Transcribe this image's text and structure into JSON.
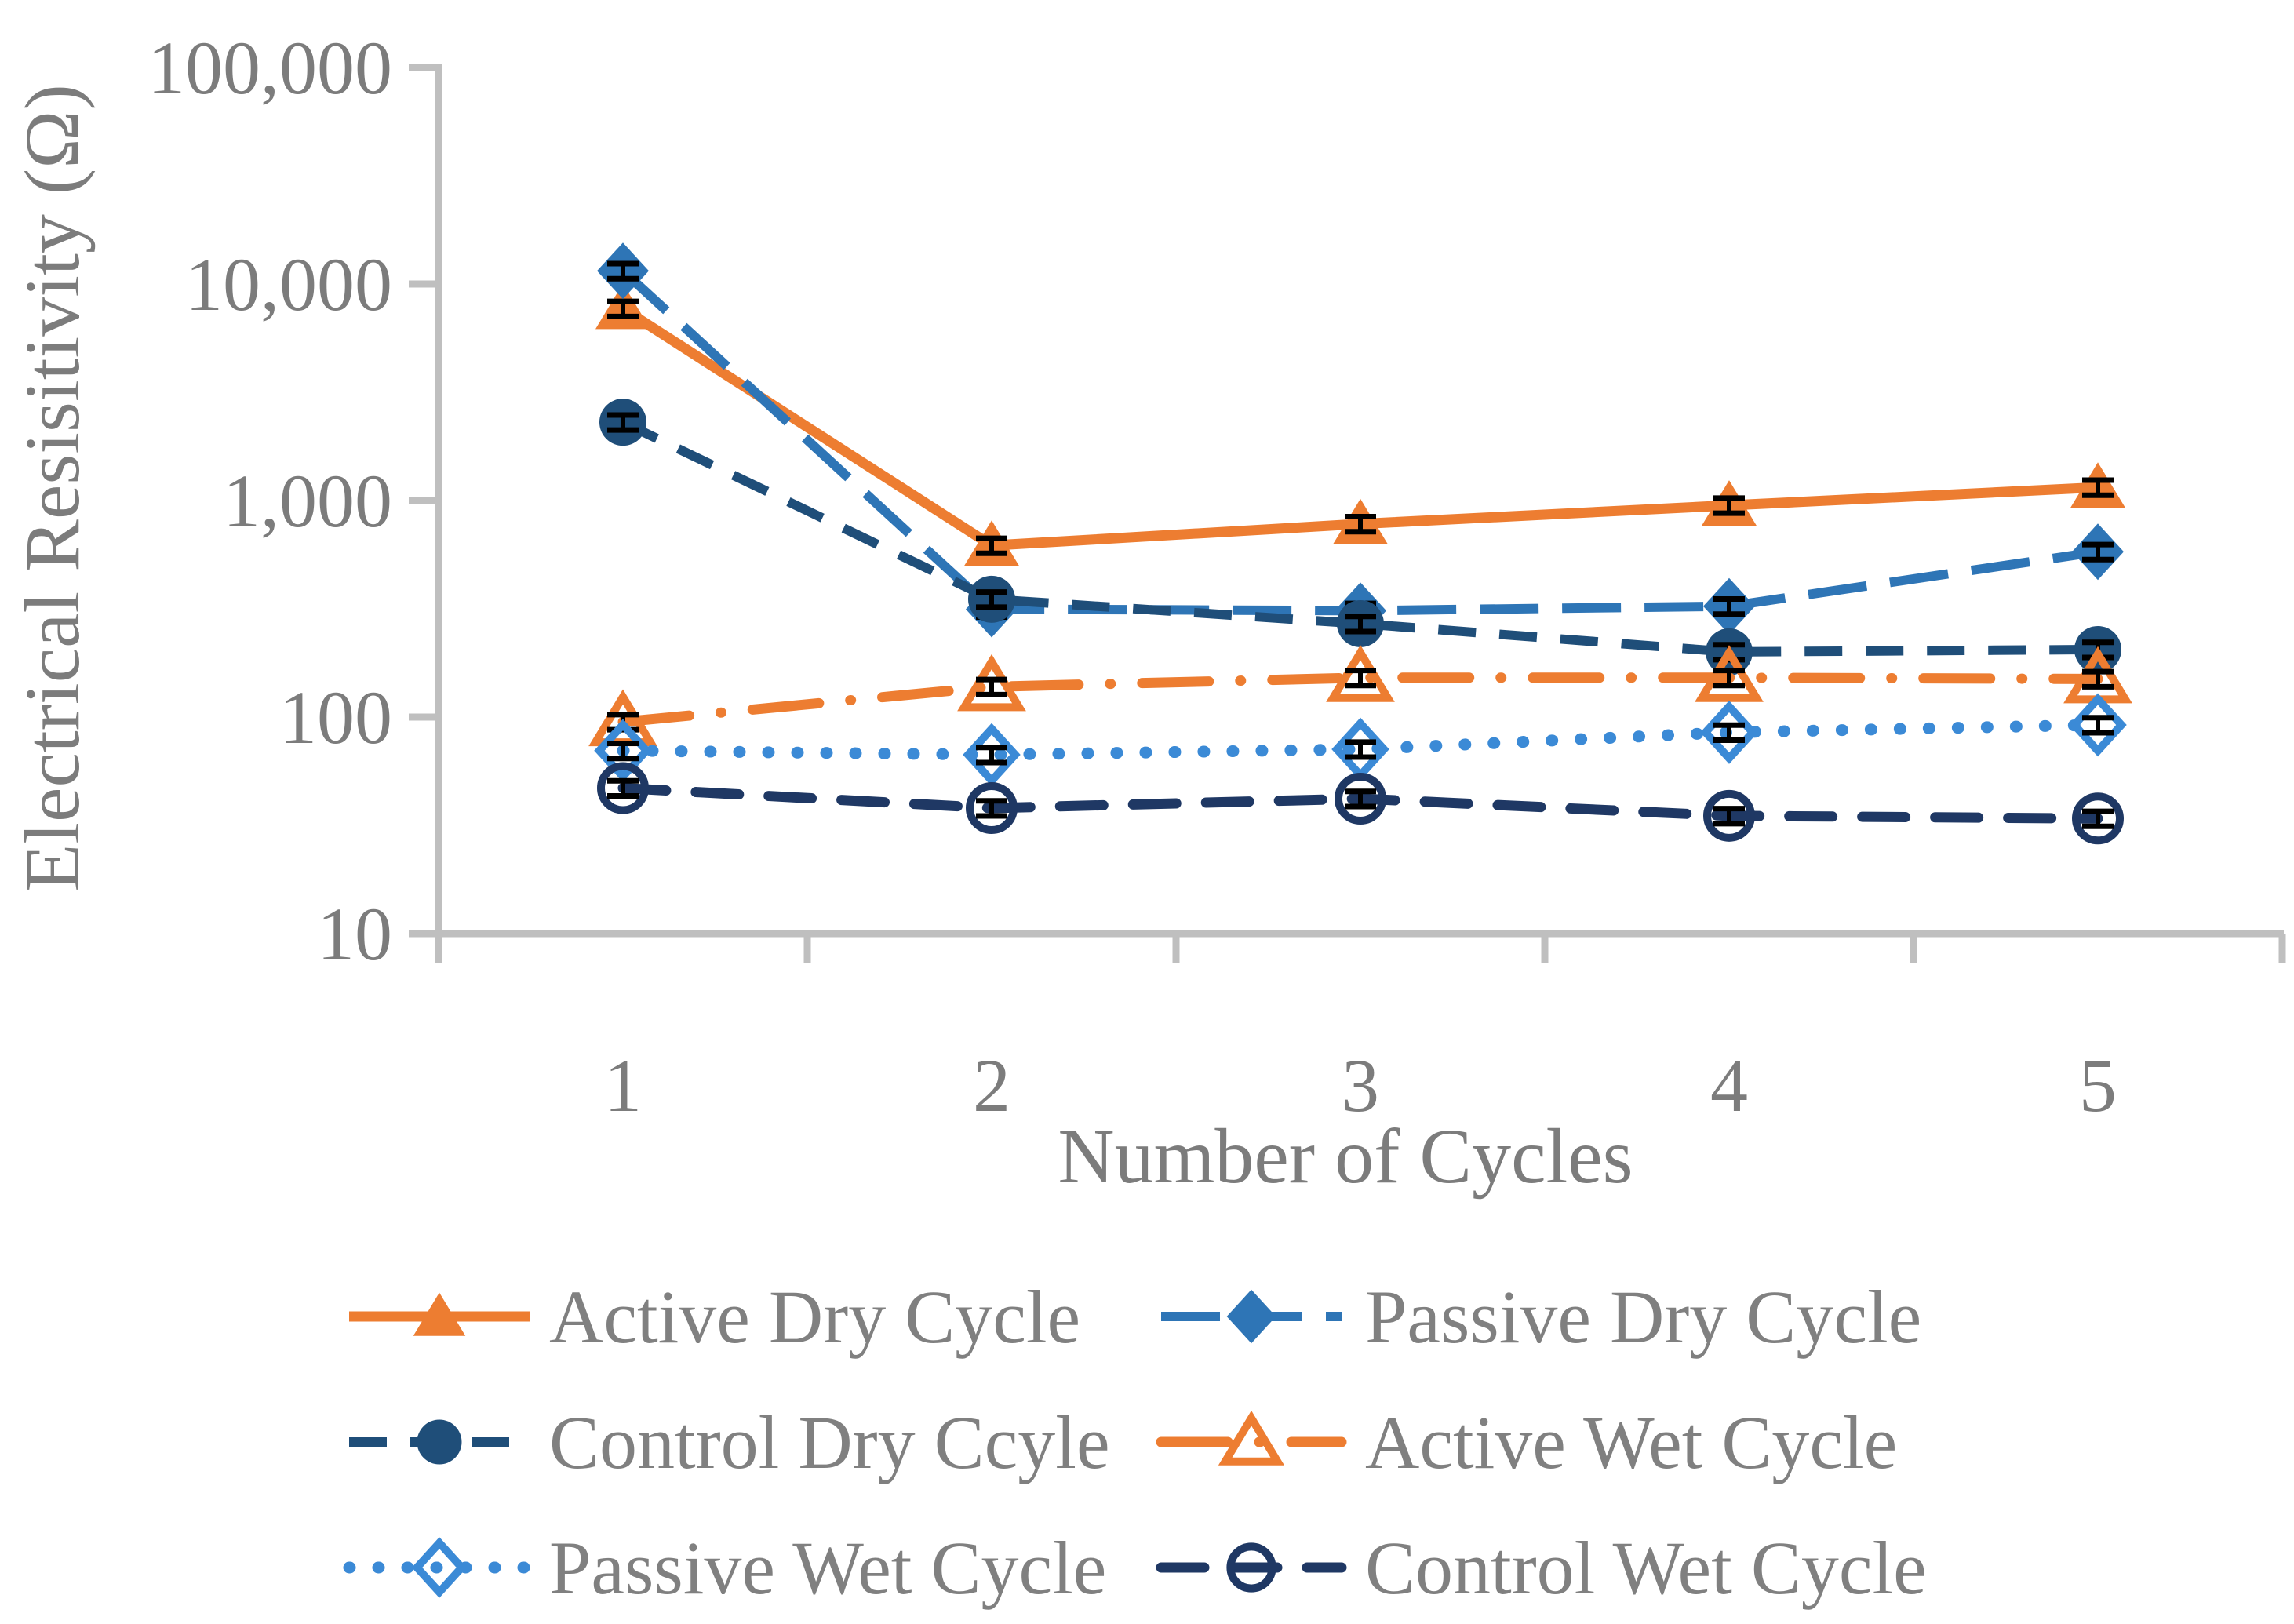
{
  "page": {
    "background": "#FFFFFF"
  },
  "axes": {
    "xlabel": "Number of Cycles",
    "ylabel": "Electrical Resisitivity (Ω)"
  },
  "colors": {
    "active_orange": "#ED7D31",
    "passive_dry_blue": "#2E75B6",
    "passive_wet_blue": "#3B8AD6",
    "control_dry_navy": "#1F4E79",
    "control_wet_navy": "#1F3864",
    "axis_gray": "#BFBFBF",
    "text_gray": "#7C7C7C",
    "legend_text_gray": "#808080",
    "error_bar_black": "#000000"
  },
  "chart_data": {
    "type": "line",
    "title": "",
    "xlabel": "Number of Cycles",
    "ylabel": "Electrical Resisitivity (Ω)",
    "x_categories": [
      1,
      2,
      3,
      4,
      5
    ],
    "x_tick_labels": [
      "1",
      "2",
      "3",
      "4",
      "5"
    ],
    "y_scale": "log10",
    "ylim": [
      10,
      100000
    ],
    "y_ticks": [
      {
        "value": 10,
        "label": "10"
      },
      {
        "value": 100,
        "label": "100"
      },
      {
        "value": 1000,
        "label": "1,000"
      },
      {
        "value": 10000,
        "label": "10,000"
      },
      {
        "value": 100000,
        "label": "100,000"
      }
    ],
    "grid": false,
    "legend_position": "bottom",
    "error_bar_fraction": 0.08,
    "series": [
      {
        "name": "Active Dry Cycle",
        "legend_label": "Active Dry Cycle",
        "color": "#ED7D31",
        "line_style": "solid",
        "marker": "triangle-filled",
        "values": [
          7700,
          620,
          780,
          950,
          1150
        ]
      },
      {
        "name": "Passive Dry Cycle",
        "legend_label": "Passive Dry Cycle",
        "color": "#2E75B6",
        "line_style": "long-dash",
        "marker": "diamond-filled",
        "values": [
          11500,
          315,
          310,
          325,
          580
        ]
      },
      {
        "name": "Control Dry Cycle",
        "legend_label": "Control Dry Ccyle",
        "color": "#1F4E79",
        "line_style": "dash",
        "marker": "circle-filled",
        "values": [
          2300,
          350,
          270,
          200,
          205
        ]
      },
      {
        "name": "Active Wet Cycle",
        "legend_label": "Active Wet Cycle",
        "color": "#ED7D31",
        "line_style": "dash-dot",
        "marker": "triangle-open",
        "values": [
          95,
          138,
          152,
          152,
          150
        ]
      },
      {
        "name": "Passive Wet Cycle",
        "legend_label": "Passive Wet Cycle",
        "color": "#3B8AD6",
        "line_style": "dot",
        "marker": "diamond-open",
        "values": [
          70,
          67,
          71,
          85,
          92
        ]
      },
      {
        "name": "Control Wet Cycle",
        "legend_label": "Control Wet Cycle",
        "color": "#1F3864",
        "line_style": "dash-round",
        "marker": "circle-open",
        "values": [
          47,
          38,
          42,
          35,
          34
        ]
      }
    ]
  }
}
